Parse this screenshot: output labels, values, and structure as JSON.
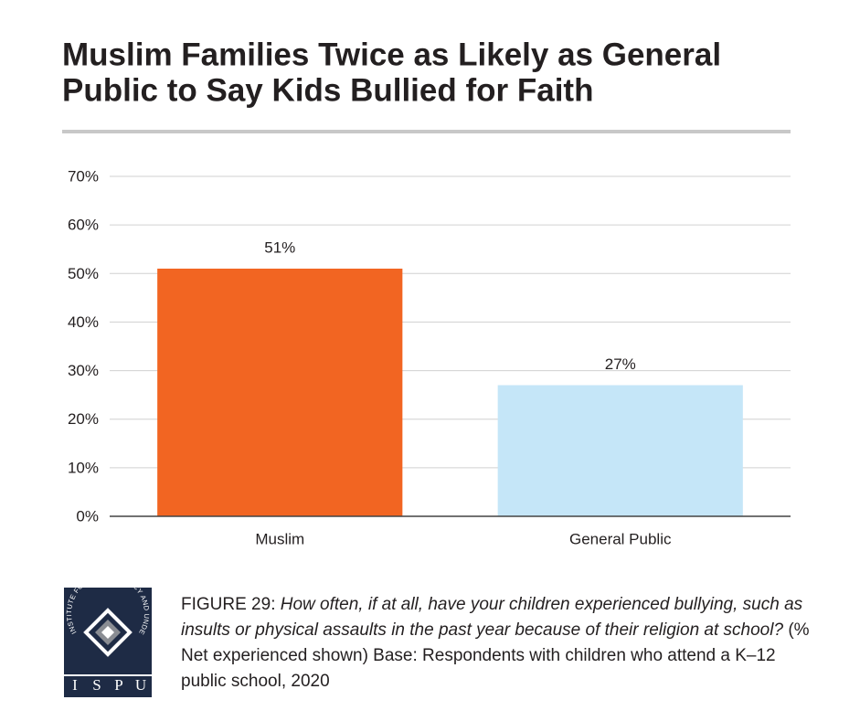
{
  "chart_data": {
    "type": "bar",
    "title_lines": [
      "Muslim Families Twice as Likely as General",
      "Public to Say Kids Bullied for Faith"
    ],
    "categories": [
      "Muslim",
      "General Public"
    ],
    "values": [
      51,
      27
    ],
    "value_labels": [
      "51%",
      "27%"
    ],
    "colors": [
      "#f26522",
      "#c5e6f8"
    ],
    "ylim": [
      0,
      70
    ],
    "yticks": [
      {
        "value": 0,
        "label": "0%"
      },
      {
        "value": 10,
        "label": "10%"
      },
      {
        "value": 20,
        "label": "20%"
      },
      {
        "value": 30,
        "label": "30%"
      },
      {
        "value": 40,
        "label": "40%"
      },
      {
        "value": 50,
        "label": "50%"
      },
      {
        "value": 60,
        "label": "60%"
      },
      {
        "value": 70,
        "label": "70%"
      }
    ],
    "grid": true
  },
  "caption": {
    "label": "FIGURE 29",
    "question": "How often, if at all, have your children experienced bullying, such as insults or physical assaults in the past year because of their religion at school?",
    "note": "(% Net experienced shown) Base: Respondents with children who attend a K–12 public school, 2020"
  },
  "logo": {
    "ring": "INSTITUTE FOR SOCIAL POLICY AND UNDERSTANDING",
    "letters": [
      "I",
      "S",
      "P",
      "U"
    ]
  }
}
